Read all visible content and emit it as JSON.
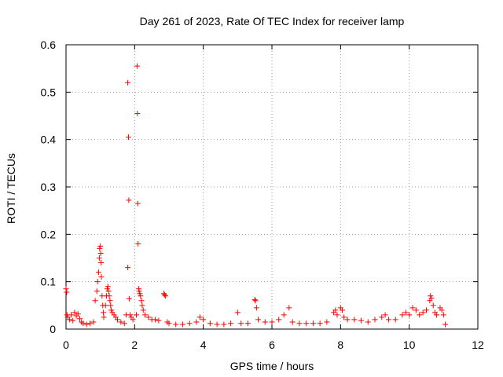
{
  "chart_data": {
    "type": "scatter",
    "title": "Day 261 of 2023, Rate Of TEC Index for receiver lamp",
    "xlabel": "GPS time / hours",
    "ylabel": "ROTI / TECUs",
    "xlim": [
      0,
      12
    ],
    "ylim": [
      0,
      0.6
    ],
    "xticks": [
      0,
      2,
      4,
      6,
      8,
      10,
      12
    ],
    "xtick_labels": [
      "0",
      "2",
      "4",
      "6",
      "8",
      "10",
      "12"
    ],
    "yticks": [
      0,
      0.1,
      0.2,
      0.3,
      0.4,
      0.5,
      0.6
    ],
    "ytick_labels": [
      "0",
      "0.1",
      "0.2",
      "0.3",
      "0.4",
      "0.5",
      "0.6"
    ],
    "grid": true,
    "marker": "+",
    "color": "#ff0000",
    "series": [
      {
        "name": "ROTI",
        "points": [
          [
            0.0,
            0.085
          ],
          [
            0.02,
            0.078
          ],
          [
            0.03,
            0.03
          ],
          [
            0.05,
            0.025
          ],
          [
            0.1,
            0.02
          ],
          [
            0.15,
            0.03
          ],
          [
            0.2,
            0.018
          ],
          [
            0.25,
            0.035
          ],
          [
            0.3,
            0.028
          ],
          [
            0.35,
            0.032
          ],
          [
            0.4,
            0.022
          ],
          [
            0.45,
            0.015
          ],
          [
            0.5,
            0.012
          ],
          [
            0.6,
            0.01
          ],
          [
            0.7,
            0.012
          ],
          [
            0.8,
            0.015
          ],
          [
            0.85,
            0.06
          ],
          [
            0.9,
            0.08
          ],
          [
            0.92,
            0.1
          ],
          [
            0.95,
            0.12
          ],
          [
            0.97,
            0.15
          ],
          [
            0.98,
            0.17
          ],
          [
            1.0,
            0.175
          ],
          [
            1.01,
            0.16
          ],
          [
            1.02,
            0.14
          ],
          [
            1.03,
            0.11
          ],
          [
            1.05,
            0.07
          ],
          [
            1.07,
            0.05
          ],
          [
            1.09,
            0.035
          ],
          [
            1.1,
            0.025
          ],
          [
            1.15,
            0.05
          ],
          [
            1.18,
            0.07
          ],
          [
            1.2,
            0.085
          ],
          [
            1.22,
            0.09
          ],
          [
            1.24,
            0.08
          ],
          [
            1.26,
            0.07
          ],
          [
            1.28,
            0.06
          ],
          [
            1.3,
            0.05
          ],
          [
            1.32,
            0.04
          ],
          [
            1.35,
            0.035
          ],
          [
            1.4,
            0.03
          ],
          [
            1.45,
            0.025
          ],
          [
            1.5,
            0.02
          ],
          [
            1.6,
            0.015
          ],
          [
            1.7,
            0.012
          ],
          [
            1.75,
            0.03
          ],
          [
            1.8,
            0.13
          ],
          [
            1.8,
            0.52
          ],
          [
            1.82,
            0.405
          ],
          [
            1.83,
            0.272
          ],
          [
            1.84,
            0.064
          ],
          [
            1.87,
            0.03
          ],
          [
            1.9,
            0.025
          ],
          [
            1.95,
            0.02
          ],
          [
            2.05,
            0.03
          ],
          [
            2.07,
            0.555
          ],
          [
            2.08,
            0.455
          ],
          [
            2.09,
            0.265
          ],
          [
            2.1,
            0.18
          ],
          [
            2.12,
            0.085
          ],
          [
            2.13,
            0.08
          ],
          [
            2.15,
            0.075
          ],
          [
            2.17,
            0.07
          ],
          [
            2.2,
            0.06
          ],
          [
            2.22,
            0.05
          ],
          [
            2.25,
            0.04
          ],
          [
            2.3,
            0.03
          ],
          [
            2.4,
            0.025
          ],
          [
            2.5,
            0.02
          ],
          [
            2.6,
            0.02
          ],
          [
            2.7,
            0.018
          ],
          [
            2.85,
            0.075
          ],
          [
            2.87,
            0.072
          ],
          [
            2.9,
            0.07
          ],
          [
            2.95,
            0.015
          ],
          [
            3.0,
            0.012
          ],
          [
            3.2,
            0.01
          ],
          [
            3.4,
            0.01
          ],
          [
            3.6,
            0.012
          ],
          [
            3.8,
            0.015
          ],
          [
            3.9,
            0.025
          ],
          [
            4.0,
            0.02
          ],
          [
            4.2,
            0.012
          ],
          [
            4.4,
            0.01
          ],
          [
            4.6,
            0.01
          ],
          [
            4.8,
            0.012
          ],
          [
            5.0,
            0.035
          ],
          [
            5.1,
            0.012
          ],
          [
            5.3,
            0.012
          ],
          [
            5.5,
            0.062
          ],
          [
            5.52,
            0.06
          ],
          [
            5.55,
            0.045
          ],
          [
            5.6,
            0.02
          ],
          [
            5.8,
            0.015
          ],
          [
            6.0,
            0.015
          ],
          [
            6.2,
            0.02
          ],
          [
            6.35,
            0.03
          ],
          [
            6.5,
            0.045
          ],
          [
            6.6,
            0.015
          ],
          [
            6.8,
            0.012
          ],
          [
            7.0,
            0.012
          ],
          [
            7.2,
            0.012
          ],
          [
            7.4,
            0.012
          ],
          [
            7.6,
            0.015
          ],
          [
            7.8,
            0.035
          ],
          [
            7.85,
            0.04
          ],
          [
            7.9,
            0.03
          ],
          [
            8.0,
            0.045
          ],
          [
            8.05,
            0.04
          ],
          [
            8.1,
            0.025
          ],
          [
            8.2,
            0.02
          ],
          [
            8.4,
            0.02
          ],
          [
            8.6,
            0.018
          ],
          [
            8.8,
            0.015
          ],
          [
            9.0,
            0.02
          ],
          [
            9.2,
            0.025
          ],
          [
            9.3,
            0.03
          ],
          [
            9.4,
            0.02
          ],
          [
            9.6,
            0.02
          ],
          [
            9.8,
            0.03
          ],
          [
            9.9,
            0.035
          ],
          [
            10.0,
            0.03
          ],
          [
            10.1,
            0.045
          ],
          [
            10.2,
            0.04
          ],
          [
            10.3,
            0.03
          ],
          [
            10.4,
            0.035
          ],
          [
            10.5,
            0.04
          ],
          [
            10.6,
            0.06
          ],
          [
            10.62,
            0.07
          ],
          [
            10.65,
            0.065
          ],
          [
            10.7,
            0.05
          ],
          [
            10.75,
            0.035
          ],
          [
            10.8,
            0.03
          ],
          [
            10.9,
            0.045
          ],
          [
            10.95,
            0.04
          ],
          [
            11.0,
            0.03
          ],
          [
            11.05,
            0.01
          ]
        ]
      }
    ]
  }
}
